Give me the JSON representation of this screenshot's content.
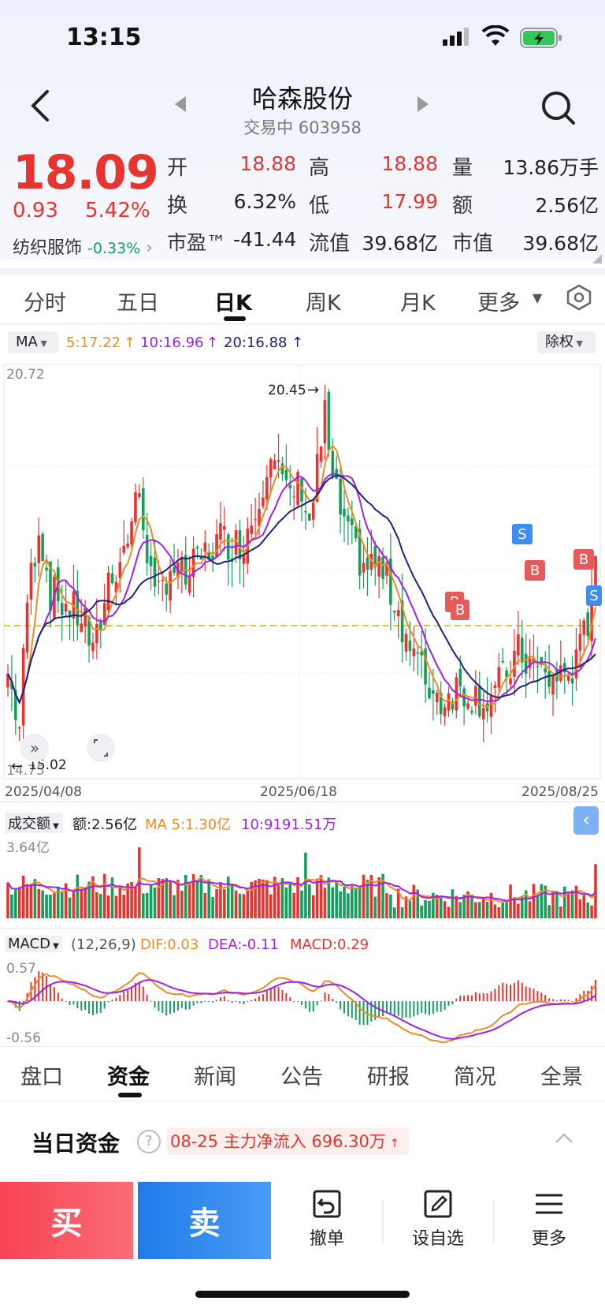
{
  "status": {
    "time": "13:15"
  },
  "header": {
    "title": "哈森股份",
    "subtitle": "交易中 603958"
  },
  "quote": {
    "price": "18.09",
    "change": "0.93",
    "change_pct": "5.42%",
    "sector": "纺织服饰",
    "sector_change": "-0.33%",
    "fields": [
      {
        "label": "开",
        "value": "18.88"
      },
      {
        "label": "高",
        "value": "18.88"
      },
      {
        "label": "量",
        "value": "13.86万手"
      },
      {
        "label": "换",
        "value": "6.32%"
      },
      {
        "label": "低",
        "value": "17.99"
      },
      {
        "label": "额",
        "value": "2.56亿"
      },
      {
        "label": "市盈™",
        "value": "-41.44"
      },
      {
        "label": "流值",
        "value": "39.68亿"
      },
      {
        "label": "市值",
        "value": "39.68亿"
      }
    ]
  },
  "tabs": [
    "分时",
    "五日",
    "日K",
    "周K",
    "月K",
    "更多"
  ],
  "active_tab": "日K",
  "ma_bar": {
    "selector": "MA",
    "ma5": "5:17.22",
    "ma10": "10:16.96",
    "ma20": "20:16.88",
    "adjust": "除权"
  },
  "kline": {
    "high_label": "20.72",
    "low_label": "14.75",
    "max_marker": "20.45",
    "min_marker": "15.02",
    "dates": [
      "2025/04/08",
      "2025/06/18",
      "2025/08/25"
    ],
    "trade_markers": [
      "B",
      "B",
      "S",
      "B",
      "B",
      "S"
    ]
  },
  "volume": {
    "selector": "成交额",
    "amount": "额:2.56亿",
    "ma5": "MA 5:1.30亿",
    "ma10": "10:9191.51万",
    "max_label": "3.64亿"
  },
  "macd": {
    "selector": "MACD",
    "params": "(12,26,9)",
    "dif": "DIF:0.03",
    "dea": "DEA:-0.11",
    "macd": "MACD:0.29",
    "top_label": "0.57",
    "bottom_label": "-0.56"
  },
  "bottom_tabs": [
    "盘口",
    "资金",
    "新闻",
    "公告",
    "研报",
    "简况",
    "全景"
  ],
  "fund": {
    "title": "当日资金",
    "info": "08-25 主力净流入 696.30万"
  },
  "actions": {
    "buy": "买",
    "sell": "卖",
    "cancel": "撤单",
    "watch": "设自选",
    "more": "更多"
  },
  "colors": {
    "up": "#e8342f",
    "down": "#13a05b",
    "ma5": "#f08a24",
    "ma10": "#a020f0",
    "ma20": "#1a237e",
    "buy": "#f74d5a",
    "sell": "#2f86f0"
  }
}
